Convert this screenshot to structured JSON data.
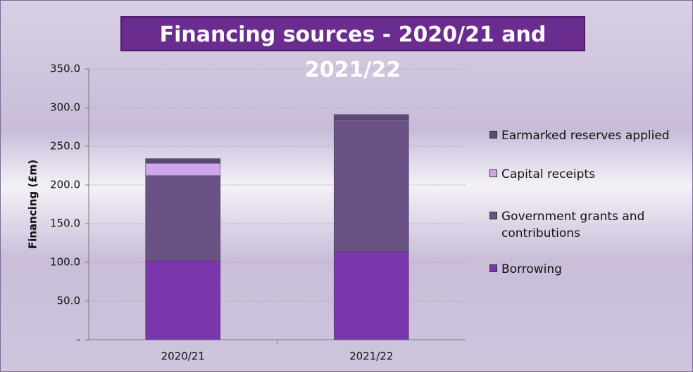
{
  "chart_data": {
    "type": "stacked_bar",
    "title": "Financing sources - 2020/21 and 2021/22",
    "y_label": "Financing (£m)",
    "categories": [
      "2020/21",
      "2021/22"
    ],
    "series": [
      {
        "name": "Borrowing",
        "color": "#7a37ac",
        "values": [
          102,
          114
        ]
      },
      {
        "name": "Government grants and contributions",
        "color": "#6a5384",
        "values": [
          110,
          169
        ]
      },
      {
        "name": "Capital receipts",
        "color": "#cfa6ec",
        "values": [
          16,
          1
        ]
      },
      {
        "name": "Earmarked reserves applied",
        "color": "#5c4a76",
        "values": [
          6,
          7
        ]
      }
    ],
    "ylim": [
      0,
      350
    ],
    "yticks": [
      {
        "value": 0,
        "label": "-"
      },
      {
        "value": 50,
        "label": "50.0"
      },
      {
        "value": 100,
        "label": "100.0"
      },
      {
        "value": 150,
        "label": "150.0"
      },
      {
        "value": 200,
        "label": "200.0"
      },
      {
        "value": 250,
        "label": "250.0"
      },
      {
        "value": 300,
        "label": "300.0"
      },
      {
        "value": 350,
        "label": "350.0"
      }
    ],
    "grid": true
  }
}
